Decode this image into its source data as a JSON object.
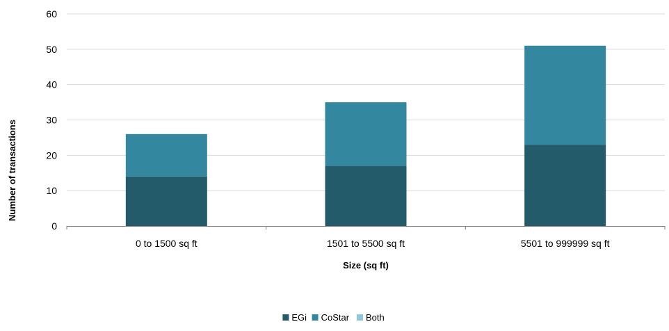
{
  "chart_data": {
    "type": "bar",
    "stacked": true,
    "categories": [
      "0 to 1500 sq ft",
      "1501 to 5500 sq ft",
      "5501 to 999999 sq ft"
    ],
    "series": [
      {
        "name": "EGi",
        "values": [
          14,
          17,
          23
        ],
        "color": "#235b6a"
      },
      {
        "name": "CoStar",
        "values": [
          12,
          18,
          28
        ],
        "color": "#33889f"
      },
      {
        "name": "Both",
        "values": [
          0,
          0,
          0
        ],
        "color": "#8ec8da"
      }
    ],
    "title": "",
    "xlabel": "Size (sq ft)",
    "ylabel": "Number of transactions",
    "ylim": [
      0,
      60
    ],
    "yticks": [
      0,
      10,
      20,
      30,
      40,
      50,
      60
    ],
    "grid": true,
    "gridline_color": "#d9d9d9",
    "legend_position": "bottom"
  }
}
